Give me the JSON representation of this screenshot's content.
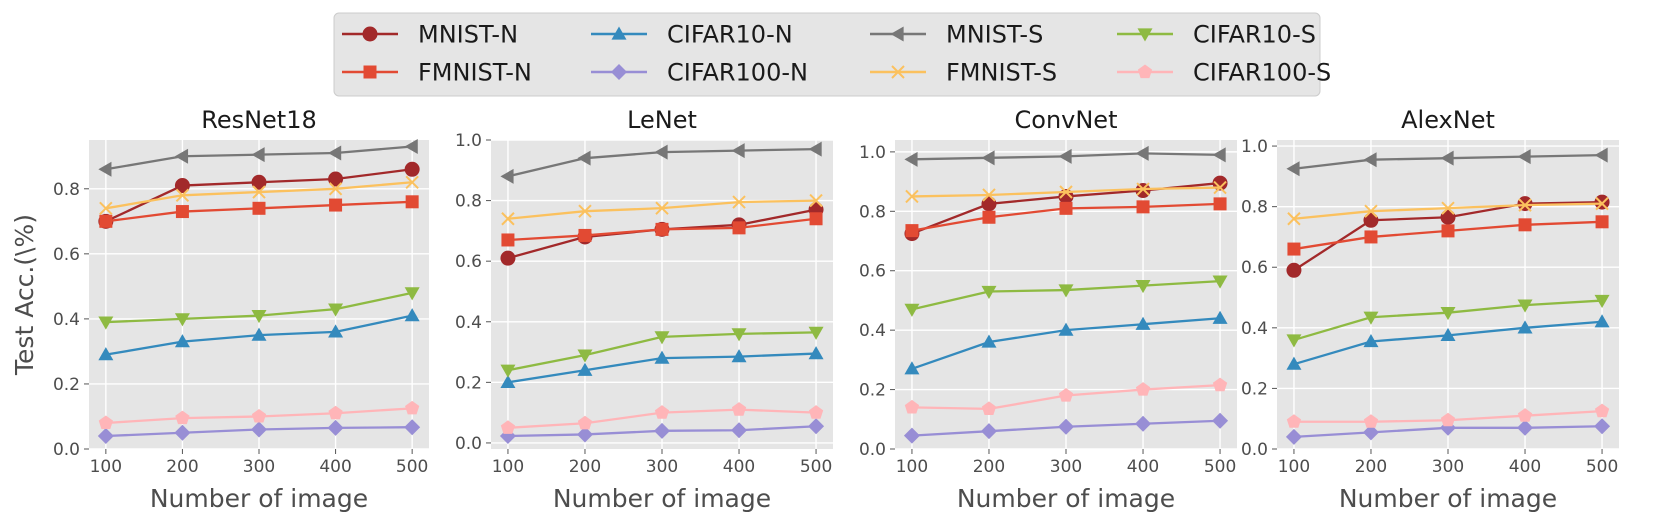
{
  "legend": {
    "columns": 4,
    "placement": "top-center"
  },
  "series_styles": [
    {
      "name": "MNIST-N",
      "color": "#A2292A",
      "marker": "circle"
    },
    {
      "name": "FMNIST-N",
      "color": "#E24A33",
      "marker": "square"
    },
    {
      "name": "CIFAR10-N",
      "color": "#348ABD",
      "marker": "triangle-up"
    },
    {
      "name": "CIFAR100-N",
      "color": "#988ED5",
      "marker": "diamond"
    },
    {
      "name": "MNIST-S",
      "color": "#777777",
      "marker": "triangle-left"
    },
    {
      "name": "FMNIST-S",
      "color": "#FBC15E",
      "marker": "x"
    },
    {
      "name": "CIFAR10-S",
      "color": "#8EBA42",
      "marker": "triangle-down"
    },
    {
      "name": "CIFAR100-S",
      "color": "#FFB5B8",
      "marker": "pentagon"
    }
  ],
  "chart_data": [
    {
      "type": "line",
      "title": "ResNet18",
      "xlabel": "Number of image",
      "ylabel": "Test Acc.(\\%)",
      "x": [
        100,
        200,
        300,
        400,
        500
      ],
      "xticks": [
        "100",
        "200",
        "300",
        "400",
        "500"
      ],
      "ylim": [
        0.0,
        0.95
      ],
      "yticks": [
        "0.0",
        "0.2",
        "0.4",
        "0.6",
        "0.8"
      ],
      "grid": true,
      "series": [
        {
          "name": "MNIST-N",
          "values": [
            0.7,
            0.81,
            0.82,
            0.83,
            0.86
          ]
        },
        {
          "name": "FMNIST-N",
          "values": [
            0.7,
            0.73,
            0.74,
            0.75,
            0.76
          ]
        },
        {
          "name": "CIFAR10-N",
          "values": [
            0.29,
            0.33,
            0.35,
            0.36,
            0.41
          ]
        },
        {
          "name": "CIFAR100-N",
          "values": [
            0.04,
            0.05,
            0.06,
            0.065,
            0.067
          ]
        },
        {
          "name": "MNIST-S",
          "values": [
            0.86,
            0.9,
            0.905,
            0.91,
            0.93
          ]
        },
        {
          "name": "FMNIST-S",
          "values": [
            0.74,
            0.78,
            0.79,
            0.8,
            0.82
          ]
        },
        {
          "name": "CIFAR10-S",
          "values": [
            0.39,
            0.4,
            0.41,
            0.43,
            0.48
          ]
        },
        {
          "name": "CIFAR100-S",
          "values": [
            0.08,
            0.095,
            0.1,
            0.11,
            0.125
          ]
        }
      ]
    },
    {
      "type": "line",
      "title": "LeNet",
      "xlabel": "Number of image",
      "ylabel": "",
      "x": [
        100,
        200,
        300,
        400,
        500
      ],
      "xticks": [
        "100",
        "200",
        "300",
        "400",
        "500"
      ],
      "ylim": [
        -0.02,
        1.0
      ],
      "yticks": [
        "0.0",
        "0.2",
        "0.4",
        "0.6",
        "0.8",
        "1.0"
      ],
      "grid": true,
      "series": [
        {
          "name": "MNIST-N",
          "values": [
            0.61,
            0.68,
            0.705,
            0.72,
            0.77
          ]
        },
        {
          "name": "FMNIST-N",
          "values": [
            0.67,
            0.685,
            0.705,
            0.71,
            0.74
          ]
        },
        {
          "name": "CIFAR10-N",
          "values": [
            0.2,
            0.24,
            0.28,
            0.285,
            0.295
          ]
        },
        {
          "name": "CIFAR100-N",
          "values": [
            0.023,
            0.028,
            0.04,
            0.042,
            0.055
          ]
        },
        {
          "name": "MNIST-S",
          "values": [
            0.88,
            0.94,
            0.96,
            0.965,
            0.97
          ]
        },
        {
          "name": "FMNIST-S",
          "values": [
            0.74,
            0.765,
            0.775,
            0.795,
            0.8
          ]
        },
        {
          "name": "CIFAR10-S",
          "values": [
            0.24,
            0.29,
            0.35,
            0.36,
            0.365
          ]
        },
        {
          "name": "CIFAR100-S",
          "values": [
            0.05,
            0.065,
            0.1,
            0.11,
            0.1
          ]
        }
      ]
    },
    {
      "type": "line",
      "title": "ConvNet",
      "xlabel": "Number of image",
      "ylabel": "",
      "x": [
        100,
        200,
        300,
        400,
        500
      ],
      "xticks": [
        "100",
        "200",
        "300",
        "400",
        "500"
      ],
      "ylim": [
        0.0,
        1.04
      ],
      "yticks": [
        "0.0",
        "0.2",
        "0.4",
        "0.6",
        "0.8",
        "1.0"
      ],
      "grid": true,
      "series": [
        {
          "name": "MNIST-N",
          "values": [
            0.725,
            0.825,
            0.85,
            0.87,
            0.895
          ]
        },
        {
          "name": "FMNIST-N",
          "values": [
            0.735,
            0.78,
            0.81,
            0.815,
            0.825
          ]
        },
        {
          "name": "CIFAR10-N",
          "values": [
            0.27,
            0.36,
            0.4,
            0.42,
            0.44
          ]
        },
        {
          "name": "CIFAR100-N",
          "values": [
            0.045,
            0.06,
            0.075,
            0.085,
            0.095
          ]
        },
        {
          "name": "MNIST-S",
          "values": [
            0.975,
            0.98,
            0.985,
            0.995,
            0.99
          ]
        },
        {
          "name": "FMNIST-S",
          "values": [
            0.85,
            0.855,
            0.865,
            0.875,
            0.88
          ]
        },
        {
          "name": "CIFAR10-S",
          "values": [
            0.47,
            0.53,
            0.535,
            0.55,
            0.565
          ]
        },
        {
          "name": "CIFAR100-S",
          "values": [
            0.14,
            0.135,
            0.18,
            0.2,
            0.215
          ]
        }
      ]
    },
    {
      "type": "line",
      "title": "AlexNet",
      "xlabel": "Number of image",
      "ylabel": "",
      "x": [
        100,
        200,
        300,
        400,
        500
      ],
      "xticks": [
        "100",
        "200",
        "300",
        "400",
        "500"
      ],
      "ylim": [
        0.0,
        1.02
      ],
      "yticks": [
        "0.0",
        "0.2",
        "0.4",
        "0.6",
        "0.8",
        "1.0"
      ],
      "grid": true,
      "series": [
        {
          "name": "MNIST-N",
          "values": [
            0.59,
            0.755,
            0.765,
            0.81,
            0.815
          ]
        },
        {
          "name": "FMNIST-N",
          "values": [
            0.66,
            0.7,
            0.72,
            0.74,
            0.75
          ]
        },
        {
          "name": "CIFAR10-N",
          "values": [
            0.28,
            0.355,
            0.375,
            0.4,
            0.42
          ]
        },
        {
          "name": "CIFAR100-N",
          "values": [
            0.04,
            0.055,
            0.07,
            0.07,
            0.075
          ]
        },
        {
          "name": "MNIST-S",
          "values": [
            0.925,
            0.955,
            0.96,
            0.965,
            0.97
          ]
        },
        {
          "name": "FMNIST-S",
          "values": [
            0.76,
            0.785,
            0.795,
            0.805,
            0.81
          ]
        },
        {
          "name": "CIFAR10-S",
          "values": [
            0.36,
            0.435,
            0.45,
            0.475,
            0.49
          ]
        },
        {
          "name": "CIFAR100-S",
          "values": [
            0.09,
            0.09,
            0.095,
            0.11,
            0.125
          ]
        }
      ]
    }
  ]
}
